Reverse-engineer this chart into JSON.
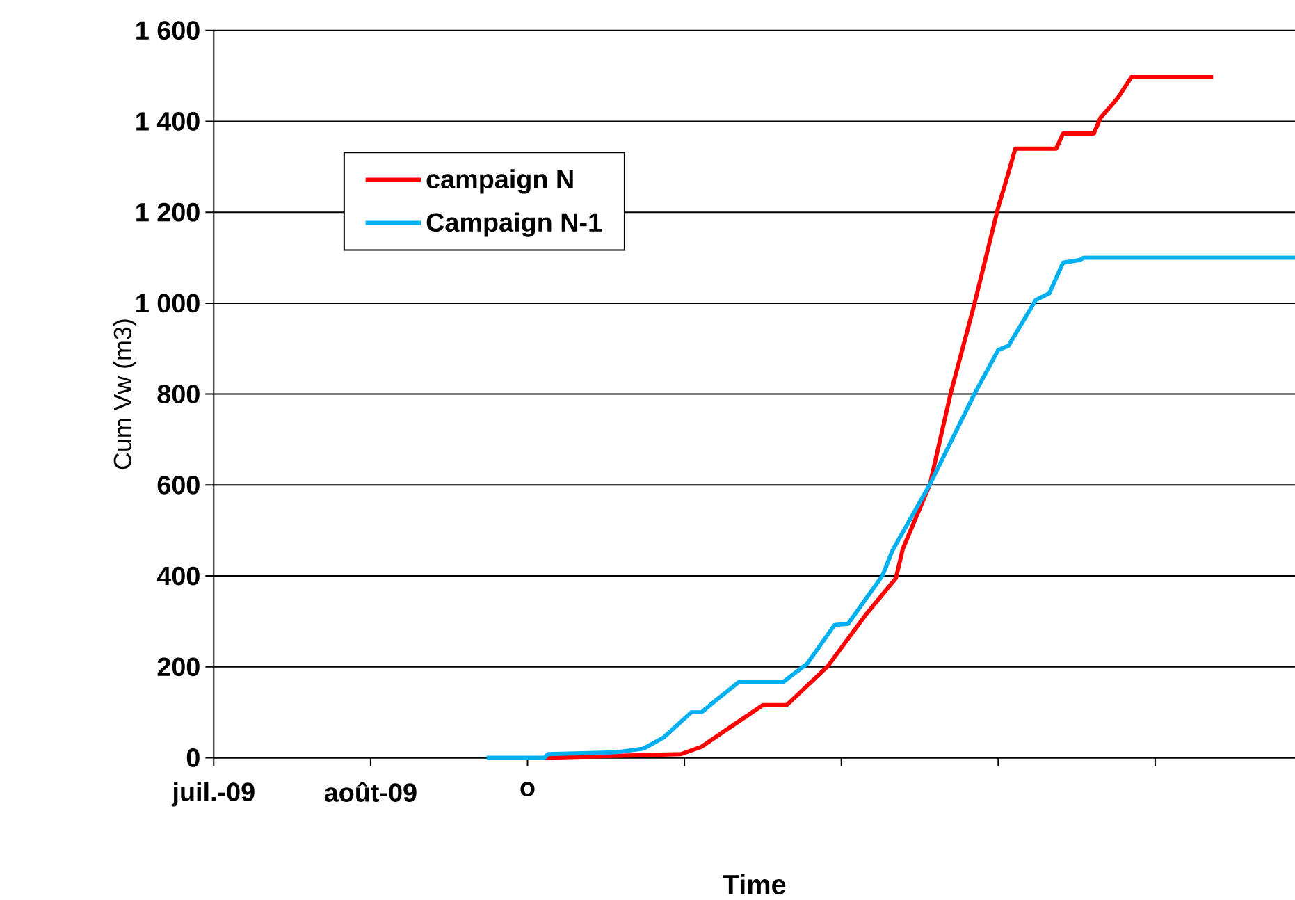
{
  "chart_data": {
    "type": "line",
    "xlabel": "Time",
    "ylabel": "Cum Vw (m3)",
    "xlim": [
      "2009-07-01",
      "2010-05-14"
    ],
    "ylim": [
      0,
      1600
    ],
    "xticks": [
      {
        "value": "2009-07-01",
        "label": "juil.-09"
      },
      {
        "value": "2009-08-16",
        "label": "août-09"
      },
      {
        "value": "2009-10-01",
        "label": "o"
      },
      {
        "value": "2009-11-16",
        "label": null
      },
      {
        "value": "2010-01-01",
        "label": null
      },
      {
        "value": "2010-02-16",
        "label": null
      },
      {
        "value": "2010-04-03",
        "label": null
      }
    ],
    "yticks": [
      0,
      200,
      400,
      600,
      800,
      {
        "value": 1000,
        "label": "1 000"
      },
      {
        "value": 1200,
        "label": "1 200"
      },
      {
        "value": 1400,
        "label": "1 400"
      },
      {
        "value": 1600,
        "label": "1 600"
      }
    ],
    "grid": "y",
    "legend": "top left",
    "series": [
      {
        "name": "campaign N",
        "color": "#ff0000",
        "x": [
          "2009-10-06",
          "2009-11-15",
          "2009-11-21",
          "2009-11-28",
          "2009-12-09",
          "2009-12-16",
          "2009-12-28",
          "2010-01-08",
          "2010-01-17",
          "2010-01-19",
          "2010-01-27",
          "2010-02-02",
          "2010-02-09",
          "2010-02-16",
          "2010-02-19",
          "2010-02-21",
          "2010-03-05",
          "2010-03-07",
          "2010-03-16",
          "2010-03-18",
          "2010-03-23",
          "2010-03-27",
          "2010-04-20"
        ],
        "values": [
          0,
          8,
          24,
          60,
          116,
          116,
          201,
          313,
          395,
          459,
          602,
          800,
          998,
          1211,
          1287,
          1340,
          1340,
          1373,
          1373,
          1408,
          1451,
          1497,
          1497
        ]
      },
      {
        "name": "Campaign N-1",
        "color": "#00b0f0",
        "x": [
          "2009-09-19",
          "2009-10-06",
          "2009-10-07",
          "2009-10-27",
          "2009-11-04",
          "2009-11-10",
          "2009-11-18",
          "2009-11-21",
          "2009-11-25",
          "2009-12-02",
          "2009-12-15",
          "2009-12-22",
          "2009-12-30",
          "2010-01-03",
          "2010-01-13",
          "2010-01-16",
          "2010-01-27",
          "2010-02-09",
          "2010-02-16",
          "2010-02-19",
          "2010-02-27",
          "2010-03-03",
          "2010-03-07",
          "2010-03-12",
          "2010-03-13",
          "2010-05-14"
        ],
        "values": [
          0,
          0,
          8,
          12,
          20,
          45,
          100,
          100,
          125,
          167,
          167,
          207,
          292,
          295,
          400,
          456,
          602,
          800,
          897,
          906,
          1007,
          1022,
          1089,
          1095,
          1100,
          1100
        ]
      }
    ]
  }
}
